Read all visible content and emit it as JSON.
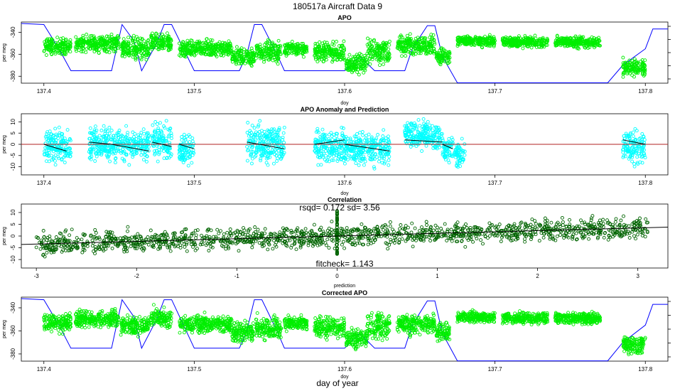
{
  "figure": {
    "title": "180517a   Aircraft Data 9",
    "xlabel": "day of year"
  },
  "colors": {
    "apo_points": "#00ee00",
    "anomaly_points": "#00ffff",
    "anomaly_line": "#b22222",
    "prediction_line": "#000000",
    "correlation_points": "#006400",
    "altitude_line": "#0000ff"
  },
  "chart_data": [
    {
      "id": "apo",
      "type": "scatter",
      "title": "APO",
      "xlabel": "doy",
      "ylabel": "per meg",
      "xlim": [
        137.385,
        137.815
      ],
      "ylim": [
        -385,
        -332
      ],
      "xticks": [
        137.4,
        137.5,
        137.6,
        137.7,
        137.8
      ],
      "xtick_labels": [
        "137.4",
        "137.5",
        "137.6",
        "137.7",
        "137.8"
      ],
      "yticks": [
        -380,
        -360,
        -340
      ],
      "ytick_labels": [
        "-380",
        "-360",
        "-340"
      ],
      "grid": false,
      "series": [
        {
          "kind": "points",
          "segments": [
            {
              "x": [
                137.4,
                137.418
              ],
              "center": -353,
              "spread": 6
            },
            {
              "x": [
                137.421,
                137.45
              ],
              "center": -350,
              "spread": 6
            },
            {
              "x": [
                137.451,
                137.47
              ],
              "center": -355,
              "spread": 8
            },
            {
              "x": [
                137.471,
                137.485
              ],
              "center": -350,
              "spread": 7
            },
            {
              "x": [
                137.49,
                137.525
              ],
              "center": -355,
              "spread": 6
            },
            {
              "x": [
                137.525,
                137.54
              ],
              "center": -362,
              "spread": 7
            },
            {
              "x": [
                137.541,
                137.558
              ],
              "center": -358,
              "spread": 8
            },
            {
              "x": [
                137.56,
                137.575
              ],
              "center": -355,
              "spread": 5
            },
            {
              "x": [
                137.58,
                137.6
              ],
              "center": -358,
              "spread": 7
            },
            {
              "x": [
                137.601,
                137.615
              ],
              "center": -368,
              "spread": 7
            },
            {
              "x": [
                137.615,
                137.63
              ],
              "center": -358,
              "spread": 9
            },
            {
              "x": [
                137.635,
                137.66
              ],
              "center": -352,
              "spread": 7
            },
            {
              "x": [
                137.661,
                137.67
              ],
              "center": -362,
              "spread": 6
            },
            {
              "x": [
                137.675,
                137.7
              ],
              "center": -348,
              "spread": 4
            },
            {
              "x": [
                137.705,
                137.735
              ],
              "center": -349,
              "spread": 4
            },
            {
              "x": [
                137.74,
                137.77
              ],
              "center": -349,
              "spread": 4
            },
            {
              "x": [
                137.785,
                137.8
              ],
              "center": -372,
              "spread": 6
            }
          ]
        },
        {
          "kind": "altitude",
          "x": [
            137.385,
            137.4,
            137.41,
            137.418,
            137.43,
            137.445,
            137.452,
            137.46,
            137.465,
            137.475,
            137.48,
            137.485,
            137.5,
            137.53,
            137.535,
            137.54,
            137.545,
            137.555,
            137.56,
            137.565,
            137.58,
            137.6,
            137.61,
            137.62,
            137.64,
            137.645,
            137.655,
            137.66,
            137.665,
            137.675,
            137.7,
            137.75,
            137.775,
            137.785,
            137.8,
            137.805,
            137.815
          ],
          "y": [
            -332,
            -333,
            -355,
            -375,
            -375,
            -375,
            -333,
            -348,
            -375,
            -350,
            -333,
            -333,
            -375,
            -375,
            -360,
            -333,
            -333,
            -360,
            -375,
            -375,
            -375,
            -375,
            -362,
            -375,
            -375,
            -355,
            -334,
            -334,
            -362,
            -386,
            -386,
            -386,
            -386,
            -370,
            -355,
            -337,
            -337
          ]
        }
      ]
    },
    {
      "id": "anomaly",
      "type": "scatter",
      "title": "APO Anomaly and Prediction",
      "xlabel": "doy",
      "ylabel": "per meg",
      "xlim": [
        137.385,
        137.815
      ],
      "ylim": [
        -13,
        13
      ],
      "xticks": [
        137.4,
        137.5,
        137.6,
        137.7,
        137.8
      ],
      "xtick_labels": [
        "137.4",
        "137.5",
        "137.6",
        "137.7",
        "137.8"
      ],
      "yticks": [
        -10,
        -5,
        0,
        5,
        10
      ],
      "ytick_labels": [
        "-10",
        "-5",
        "0",
        "5",
        "10"
      ],
      "grid": false,
      "series": [
        {
          "kind": "points",
          "segments": [
            {
              "x": [
                137.4,
                137.418
              ],
              "center": -1,
              "spread": 6
            },
            {
              "x": [
                137.43,
                137.47
              ],
              "center": 0,
              "spread": 6
            },
            {
              "x": [
                137.472,
                137.485
              ],
              "center": 1,
              "spread": 7
            },
            {
              "x": [
                137.49,
                137.5
              ],
              "center": -2,
              "spread": 5
            },
            {
              "x": [
                137.535,
                137.56
              ],
              "center": 0,
              "spread": 7
            },
            {
              "x": [
                137.58,
                137.6
              ],
              "center": -1,
              "spread": 6
            },
            {
              "x": [
                137.6,
                137.63
              ],
              "center": -2,
              "spread": 6
            },
            {
              "x": [
                137.64,
                137.665
              ],
              "center": 4,
              "spread": 5
            },
            {
              "x": [
                137.665,
                137.672
              ],
              "center": -2,
              "spread": 5
            },
            {
              "x": [
                137.673,
                137.68
              ],
              "center": -5,
              "spread": 5
            },
            {
              "x": [
                137.785,
                137.8
              ],
              "center": -1,
              "spread": 6
            }
          ]
        },
        {
          "kind": "prediction",
          "segments": [
            {
              "x": [
                137.4,
                137.415
              ],
              "y": [
                0,
                -3
              ]
            },
            {
              "x": [
                137.43,
                137.445
              ],
              "y": [
                1,
                0
              ]
            },
            {
              "x": [
                137.445,
                137.47
              ],
              "y": [
                0,
                -3
              ]
            },
            {
              "x": [
                137.472,
                137.485
              ],
              "y": [
                1,
                -1
              ]
            },
            {
              "x": [
                137.49,
                137.5
              ],
              "y": [
                0,
                -2
              ]
            },
            {
              "x": [
                137.535,
                137.56
              ],
              "y": [
                1,
                -2
              ]
            },
            {
              "x": [
                137.58,
                137.6
              ],
              "y": [
                0,
                2
              ]
            },
            {
              "x": [
                137.6,
                137.63
              ],
              "y": [
                0,
                -3
              ]
            },
            {
              "x": [
                137.64,
                137.665
              ],
              "y": [
                2,
                1
              ]
            },
            {
              "x": [
                137.665,
                137.672
              ],
              "y": [
                0,
                -2
              ]
            },
            {
              "x": [
                137.785,
                137.8
              ],
              "y": [
                2,
                0
              ]
            }
          ]
        }
      ]
    },
    {
      "id": "correlation",
      "type": "scatter",
      "title": "Correlation",
      "xlabel": "prediction",
      "ylabel": "per meg",
      "xlim": [
        -3.15,
        3.3
      ],
      "ylim": [
        -13,
        13
      ],
      "xticks": [
        -3,
        -2,
        -1,
        0,
        1,
        2,
        3
      ],
      "xtick_labels": [
        "-3",
        "-2",
        "-1",
        "0",
        "1",
        "2",
        "3"
      ],
      "yticks": [
        -10,
        -5,
        0,
        5,
        10
      ],
      "ytick_labels": [
        "-10",
        "-5",
        "0",
        "5",
        "10"
      ],
      "grid": false,
      "fit": {
        "slope": 1.143,
        "intercept": 0,
        "x": [
          -3.15,
          3.3
        ]
      },
      "point_cloud": {
        "x": [
          -3.0,
          3.1
        ],
        "spread": 5
      },
      "annotations": {
        "stats": "rsqd= 0.172 sd= 3.56",
        "fitcheck": "fitcheck= 1.143"
      }
    },
    {
      "id": "corrected",
      "type": "scatter",
      "title": "Corrected APO",
      "xlabel": "doy",
      "ylabel": "per meg",
      "xlim": [
        137.385,
        137.815
      ],
      "ylim": [
        -385,
        -332
      ],
      "xticks": [
        137.4,
        137.5,
        137.6,
        137.7,
        137.8
      ],
      "xtick_labels": [
        "137.4",
        "137.5",
        "137.6",
        "137.7",
        "137.8"
      ],
      "yticks": [
        -380,
        -360,
        -340
      ],
      "ytick_labels": [
        "-380",
        "-360",
        "-340"
      ],
      "grid": false,
      "series": [
        {
          "kind": "points",
          "segments": [
            {
              "x": [
                137.4,
                137.418
              ],
              "center": -353,
              "spread": 6
            },
            {
              "x": [
                137.421,
                137.45
              ],
              "center": -350,
              "spread": 6
            },
            {
              "x": [
                137.451,
                137.47
              ],
              "center": -355,
              "spread": 7
            },
            {
              "x": [
                137.471,
                137.485
              ],
              "center": -349,
              "spread": 7
            },
            {
              "x": [
                137.49,
                137.525
              ],
              "center": -354,
              "spread": 6
            },
            {
              "x": [
                137.525,
                137.54
              ],
              "center": -361,
              "spread": 7
            },
            {
              "x": [
                137.541,
                137.558
              ],
              "center": -357,
              "spread": 8
            },
            {
              "x": [
                137.56,
                137.575
              ],
              "center": -354,
              "spread": 5
            },
            {
              "x": [
                137.58,
                137.6
              ],
              "center": -357,
              "spread": 7
            },
            {
              "x": [
                137.601,
                137.615
              ],
              "center": -367,
              "spread": 7
            },
            {
              "x": [
                137.615,
                137.63
              ],
              "center": -356,
              "spread": 9
            },
            {
              "x": [
                137.635,
                137.66
              ],
              "center": -354,
              "spread": 7
            },
            {
              "x": [
                137.661,
                137.67
              ],
              "center": -361,
              "spread": 6
            },
            {
              "x": [
                137.675,
                137.7
              ],
              "center": -348,
              "spread": 4
            },
            {
              "x": [
                137.705,
                137.735
              ],
              "center": -349,
              "spread": 4
            },
            {
              "x": [
                137.74,
                137.77
              ],
              "center": -349,
              "spread": 4
            },
            {
              "x": [
                137.785,
                137.8
              ],
              "center": -372,
              "spread": 6
            }
          ]
        },
        {
          "kind": "altitude",
          "x": [
            137.385,
            137.4,
            137.41,
            137.418,
            137.43,
            137.445,
            137.452,
            137.46,
            137.465,
            137.475,
            137.48,
            137.485,
            137.5,
            137.53,
            137.535,
            137.54,
            137.545,
            137.555,
            137.56,
            137.565,
            137.58,
            137.6,
            137.61,
            137.62,
            137.64,
            137.645,
            137.655,
            137.66,
            137.665,
            137.675,
            137.7,
            137.75,
            137.775,
            137.785,
            137.8,
            137.805,
            137.815
          ],
          "y": [
            -332,
            -333,
            -355,
            -375,
            -375,
            -375,
            -333,
            -348,
            -375,
            -350,
            -333,
            -333,
            -375,
            -375,
            -360,
            -333,
            -333,
            -360,
            -375,
            -375,
            -375,
            -375,
            -362,
            -375,
            -375,
            -355,
            -334,
            -334,
            -362,
            -386,
            -386,
            -386,
            -386,
            -370,
            -355,
            -337,
            -337
          ]
        }
      ]
    }
  ]
}
